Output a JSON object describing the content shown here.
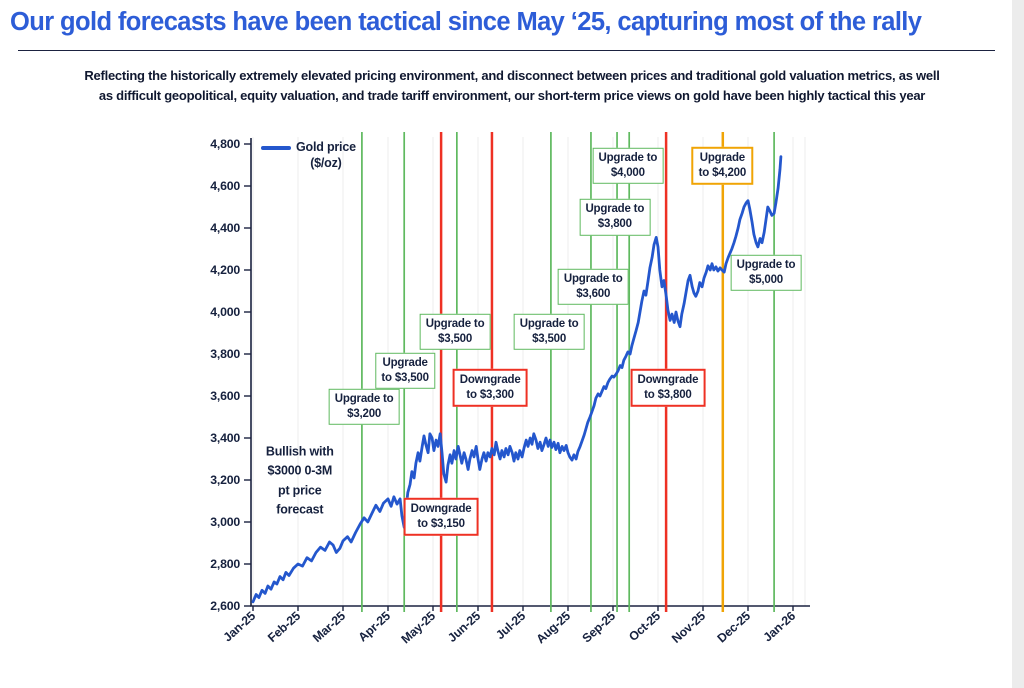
{
  "header": {
    "title": "Our gold forecasts have been tactical since May ‘25, capturing most of the rally",
    "title_color": "#2d5dd7",
    "subtitle_lines": [
      "Reflecting the historically extremely elevated pricing environment, and disconnect between prices and traditional gold valuation metrics, as well",
      "as difficult geopolitical, equity valuation, and trade tariff environment, our short-term price views on gold have been highly tactical this year"
    ]
  },
  "chart_data": {
    "type": "line",
    "legend": {
      "label_lines": [
        "Gold price",
        "($/oz)"
      ],
      "position": "top-left"
    },
    "ylim": [
      2600,
      4800
    ],
    "ytick_step": 200,
    "y_tick_labels": [
      "2,600",
      "2,800",
      "3,000",
      "3,200",
      "3,400",
      "3,600",
      "3,800",
      "4,000",
      "4,200",
      "4,400",
      "4,600",
      "4,800"
    ],
    "x_tick_labels": [
      "Jan-25",
      "Feb-25",
      "Mar-25",
      "Apr-25",
      "May-25",
      "Jun-25",
      "Jul-25",
      "Aug-25",
      "Sep-25",
      "Oct-25",
      "Nov-25",
      "Dec-25",
      "Jan-26"
    ],
    "grid": "faint vertical lines at month ticks",
    "line_color": "#2457cd",
    "axis_color": "#1b2240",
    "event_colors": {
      "green": "#5fb95f",
      "red": "#ee3124",
      "orange": "#f0a405"
    },
    "note": {
      "lines": [
        "Bullish with",
        "$3000 0-3M",
        "pt price",
        "forecast"
      ],
      "month": 1.04,
      "price": 3195
    },
    "events": [
      {
        "month": 2.42,
        "color_key": "green",
        "box_lines": [
          "Upgrade to",
          "$3,200"
        ],
        "box_month": 2.47,
        "box_price": 3548
      },
      {
        "month": 3.36,
        "color_key": "green",
        "box_lines": [
          "Upgrade",
          "to $3,500"
        ],
        "box_month": 3.38,
        "box_price": 3719
      },
      {
        "month": 4.18,
        "color_key": "red",
        "box_lines": [
          "Downgrade",
          "to $3,150"
        ],
        "box_month": 4.18,
        "box_price": 3024
      },
      {
        "month": 4.53,
        "color_key": "green",
        "box_lines": [
          "Upgrade to",
          "$3,500"
        ],
        "box_month": 4.49,
        "box_price": 3905
      },
      {
        "month": 5.31,
        "color_key": "red",
        "box_lines": [
          "Downgrade",
          "to $3,300"
        ],
        "box_month": 5.27,
        "box_price": 3638
      },
      {
        "month": 6.62,
        "color_key": "green",
        "box_lines": [
          "Upgrade to",
          "$3,500"
        ],
        "box_month": 6.58,
        "box_price": 3905
      },
      {
        "month": 7.51,
        "color_key": "green",
        "box_lines": [
          "Upgrade to",
          "$3,600"
        ],
        "box_month": 7.56,
        "box_price": 4119
      },
      {
        "month": 8.09,
        "color_key": "green",
        "box_lines": [
          "Upgrade to",
          "$3,800"
        ],
        "box_month": 8.04,
        "box_price": 4452
      },
      {
        "month": 8.36,
        "color_key": "green",
        "box_lines": [
          "Upgrade to",
          "$4,000"
        ],
        "box_month": 8.33,
        "box_price": 4695
      },
      {
        "month": 9.18,
        "color_key": "red",
        "box_lines": [
          "Downgrade",
          "to $3,800"
        ],
        "box_month": 9.22,
        "box_price": 3638
      },
      {
        "month": 10.44,
        "color_key": "orange",
        "box_lines": [
          "Upgrade",
          "to $4,200"
        ],
        "box_month": 10.43,
        "box_price": 4695
      },
      {
        "month": 11.58,
        "color_key": "green",
        "box_lines": [
          "Upgrade to",
          "$5,000"
        ],
        "box_month": 11.4,
        "box_price": 4186
      }
    ],
    "series": [
      {
        "name": "Gold price ($/oz)",
        "points": [
          [
            0,
            2620
          ],
          [
            0.07,
            2655
          ],
          [
            0.13,
            2640
          ],
          [
            0.2,
            2675
          ],
          [
            0.27,
            2660
          ],
          [
            0.33,
            2695
          ],
          [
            0.4,
            2680
          ],
          [
            0.47,
            2715
          ],
          [
            0.53,
            2705
          ],
          [
            0.6,
            2740
          ],
          [
            0.67,
            2725
          ],
          [
            0.73,
            2760
          ],
          [
            0.8,
            2745
          ],
          [
            0.9,
            2780
          ],
          [
            1,
            2800
          ],
          [
            1.1,
            2790
          ],
          [
            1.2,
            2830
          ],
          [
            1.3,
            2815
          ],
          [
            1.4,
            2855
          ],
          [
            1.5,
            2880
          ],
          [
            1.6,
            2865
          ],
          [
            1.7,
            2905
          ],
          [
            1.78,
            2890
          ],
          [
            1.85,
            2855
          ],
          [
            1.93,
            2875
          ],
          [
            2,
            2910
          ],
          [
            2.1,
            2930
          ],
          [
            2.18,
            2905
          ],
          [
            2.28,
            2950
          ],
          [
            2.38,
            2990
          ],
          [
            2.47,
            3020
          ],
          [
            2.55,
            3000
          ],
          [
            2.64,
            3040
          ],
          [
            2.73,
            3080
          ],
          [
            2.82,
            3050
          ],
          [
            2.9,
            3090
          ],
          [
            3,
            3110
          ],
          [
            3.07,
            3075
          ],
          [
            3.13,
            3120
          ],
          [
            3.2,
            3085
          ],
          [
            3.27,
            3110
          ],
          [
            3.31,
            3030
          ],
          [
            3.36,
            2975
          ],
          [
            3.4,
            3060
          ],
          [
            3.44,
            3140
          ],
          [
            3.49,
            3180
          ],
          [
            3.53,
            3240
          ],
          [
            3.58,
            3210
          ],
          [
            3.62,
            3280
          ],
          [
            3.67,
            3330
          ],
          [
            3.71,
            3290
          ],
          [
            3.76,
            3360
          ],
          [
            3.8,
            3410
          ],
          [
            3.84,
            3370
          ],
          [
            3.89,
            3330
          ],
          [
            3.93,
            3420
          ],
          [
            3.98,
            3400
          ],
          [
            4.02,
            3340
          ],
          [
            4.07,
            3390
          ],
          [
            4.11,
            3360
          ],
          [
            4.16,
            3420
          ],
          [
            4.2,
            3330
          ],
          [
            4.24,
            3230
          ],
          [
            4.29,
            3190
          ],
          [
            4.33,
            3270
          ],
          [
            4.38,
            3320
          ],
          [
            4.42,
            3280
          ],
          [
            4.47,
            3340
          ],
          [
            4.51,
            3300
          ],
          [
            4.56,
            3360
          ],
          [
            4.6,
            3320
          ],
          [
            4.64,
            3280
          ],
          [
            4.69,
            3330
          ],
          [
            4.73,
            3300
          ],
          [
            4.78,
            3250
          ],
          [
            4.82,
            3300
          ],
          [
            4.87,
            3340
          ],
          [
            4.91,
            3310
          ],
          [
            4.96,
            3360
          ],
          [
            5,
            3300
          ],
          [
            5.04,
            3250
          ],
          [
            5.09,
            3300
          ],
          [
            5.13,
            3330
          ],
          [
            5.18,
            3290
          ],
          [
            5.22,
            3330
          ],
          [
            5.27,
            3310
          ],
          [
            5.31,
            3350
          ],
          [
            5.36,
            3320
          ],
          [
            5.4,
            3380
          ],
          [
            5.44,
            3340
          ],
          [
            5.49,
            3300
          ],
          [
            5.53,
            3340
          ],
          [
            5.58,
            3310
          ],
          [
            5.62,
            3350
          ],
          [
            5.67,
            3320
          ],
          [
            5.71,
            3360
          ],
          [
            5.76,
            3330
          ],
          [
            5.8,
            3290
          ],
          [
            5.84,
            3330
          ],
          [
            5.89,
            3300
          ],
          [
            5.93,
            3340
          ],
          [
            5.98,
            3310
          ],
          [
            6.02,
            3350
          ],
          [
            6.07,
            3390
          ],
          [
            6.11,
            3360
          ],
          [
            6.16,
            3400
          ],
          [
            6.2,
            3370
          ],
          [
            6.24,
            3420
          ],
          [
            6.29,
            3390
          ],
          [
            6.33,
            3350
          ],
          [
            6.38,
            3380
          ],
          [
            6.42,
            3340
          ],
          [
            6.47,
            3370
          ],
          [
            6.51,
            3400
          ],
          [
            6.56,
            3360
          ],
          [
            6.6,
            3390
          ],
          [
            6.64,
            3355
          ],
          [
            6.69,
            3380
          ],
          [
            6.73,
            3345
          ],
          [
            6.78,
            3375
          ],
          [
            6.82,
            3330
          ],
          [
            6.87,
            3360
          ],
          [
            6.91,
            3340
          ],
          [
            6.96,
            3365
          ],
          [
            7,
            3330
          ],
          [
            7.04,
            3310
          ],
          [
            7.09,
            3295
          ],
          [
            7.13,
            3320
          ],
          [
            7.18,
            3300
          ],
          [
            7.22,
            3335
          ],
          [
            7.27,
            3360
          ],
          [
            7.31,
            3385
          ],
          [
            7.36,
            3415
          ],
          [
            7.4,
            3445
          ],
          [
            7.44,
            3475
          ],
          [
            7.49,
            3500
          ],
          [
            7.53,
            3525
          ],
          [
            7.58,
            3555
          ],
          [
            7.62,
            3590
          ],
          [
            7.67,
            3610
          ],
          [
            7.71,
            3600
          ],
          [
            7.76,
            3625
          ],
          [
            7.8,
            3645
          ],
          [
            7.84,
            3635
          ],
          [
            7.89,
            3665
          ],
          [
            7.93,
            3680
          ],
          [
            7.98,
            3695
          ],
          [
            8.02,
            3690
          ],
          [
            8.07,
            3705
          ],
          [
            8.11,
            3720
          ],
          [
            8.16,
            3745
          ],
          [
            8.2,
            3735
          ],
          [
            8.24,
            3770
          ],
          [
            8.29,
            3790
          ],
          [
            8.33,
            3810
          ],
          [
            8.38,
            3800
          ],
          [
            8.42,
            3840
          ],
          [
            8.47,
            3880
          ],
          [
            8.51,
            3910
          ],
          [
            8.56,
            3950
          ],
          [
            8.6,
            4000
          ],
          [
            8.64,
            4050
          ],
          [
            8.69,
            4100
          ],
          [
            8.73,
            4080
          ],
          [
            8.78,
            4150
          ],
          [
            8.82,
            4210
          ],
          [
            8.87,
            4260
          ],
          [
            8.91,
            4320
          ],
          [
            8.96,
            4355
          ],
          [
            9,
            4310
          ],
          [
            9.04,
            4200
          ],
          [
            9.09,
            4120
          ],
          [
            9.13,
            4150
          ],
          [
            9.18,
            4080
          ],
          [
            9.22,
            4010
          ],
          [
            9.27,
            3960
          ],
          [
            9.31,
            3990
          ],
          [
            9.36,
            3950
          ],
          [
            9.4,
            4000
          ],
          [
            9.44,
            3960
          ],
          [
            9.49,
            3930
          ],
          [
            9.53,
            3990
          ],
          [
            9.58,
            4040
          ],
          [
            9.62,
            4090
          ],
          [
            9.67,
            4150
          ],
          [
            9.71,
            4175
          ],
          [
            9.76,
            4120
          ],
          [
            9.8,
            4090
          ],
          [
            9.84,
            4075
          ],
          [
            9.89,
            4100
          ],
          [
            9.93,
            4140
          ],
          [
            9.98,
            4120
          ],
          [
            10.02,
            4160
          ],
          [
            10.07,
            4190
          ],
          [
            10.11,
            4220
          ],
          [
            10.16,
            4200
          ],
          [
            10.2,
            4230
          ],
          [
            10.24,
            4200
          ],
          [
            10.29,
            4215
          ],
          [
            10.33,
            4195
          ],
          [
            10.38,
            4210
          ],
          [
            10.42,
            4200
          ],
          [
            10.47,
            4190
          ],
          [
            10.51,
            4230
          ],
          [
            10.56,
            4260
          ],
          [
            10.6,
            4280
          ],
          [
            10.64,
            4300
          ],
          [
            10.69,
            4330
          ],
          [
            10.73,
            4360
          ],
          [
            10.78,
            4400
          ],
          [
            10.82,
            4440
          ],
          [
            10.87,
            4470
          ],
          [
            10.91,
            4500
          ],
          [
            10.96,
            4520
          ],
          [
            11,
            4530
          ],
          [
            11.04,
            4490
          ],
          [
            11.09,
            4430
          ],
          [
            11.13,
            4370
          ],
          [
            11.18,
            4330
          ],
          [
            11.22,
            4310
          ],
          [
            11.27,
            4350
          ],
          [
            11.31,
            4330
          ],
          [
            11.36,
            4380
          ],
          [
            11.4,
            4440
          ],
          [
            11.44,
            4500
          ],
          [
            11.49,
            4480
          ],
          [
            11.53,
            4460
          ],
          [
            11.58,
            4470
          ],
          [
            11.62,
            4520
          ],
          [
            11.67,
            4590
          ],
          [
            11.71,
            4680
          ],
          [
            11.73,
            4740
          ]
        ]
      }
    ]
  }
}
